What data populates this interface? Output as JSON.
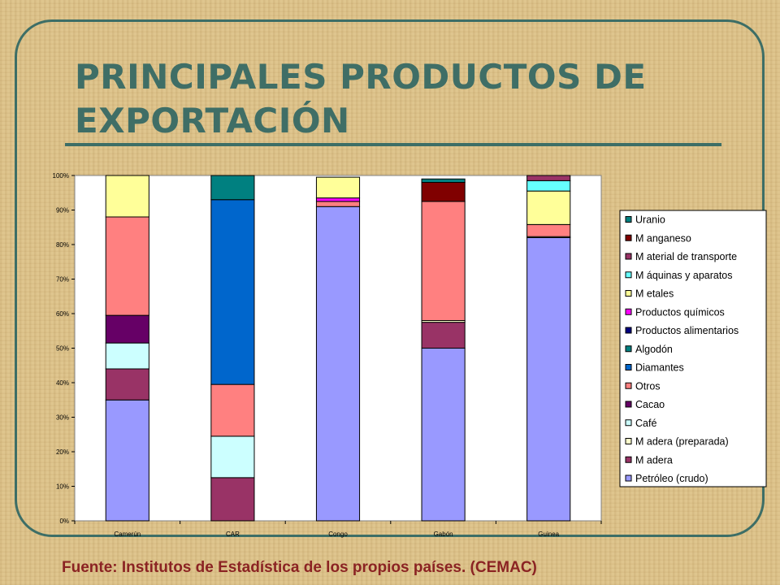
{
  "slide": {
    "title_line1": "PRINCIPALES PRODUCTOS DE",
    "title_line2": "EXPORTACIÓN",
    "source": "Fuente: Institutos de Estadística de los propios países. (CEMAC)"
  },
  "colors": {
    "frame": "#3d6e66",
    "title": "#3f6e66",
    "source": "#8b2323",
    "background": "#dcc188"
  },
  "chart_data": {
    "type": "bar",
    "stacked": true,
    "percent": true,
    "categories": [
      "Camerún",
      "CAR",
      "Congo",
      "Gabón",
      "Guinea"
    ],
    "y_ticks": [
      "0%",
      "10%",
      "20%",
      "30%",
      "40%",
      "50%",
      "60%",
      "70%",
      "80%",
      "90%",
      "100%"
    ],
    "ylim": [
      0,
      100
    ],
    "grid": false,
    "legend_position": "right",
    "series": [
      {
        "name": "Petróleo (crudo)",
        "color": "#9999ff",
        "values": [
          35,
          0,
          91,
          50,
          82
        ]
      },
      {
        "name": "M adera",
        "color": "#993366",
        "values": [
          9,
          12.5,
          0,
          7.5,
          0
        ]
      },
      {
        "name": "M adera (preparada)",
        "color": "#ffffcc",
        "values": [
          0,
          0,
          0,
          0.5,
          0.3
        ]
      },
      {
        "name": "Café",
        "color": "#ccffff",
        "values": [
          7.5,
          12,
          0,
          0,
          0
        ]
      },
      {
        "name": "Cacao",
        "color": "#660066",
        "values": [
          8,
          0,
          0,
          0,
          0
        ]
      },
      {
        "name": "Otros",
        "color": "#ff8080",
        "values": [
          28.5,
          15,
          1.5,
          34.5,
          3.5
        ]
      },
      {
        "name": "Diamantes",
        "color": "#0066cc",
        "values": [
          0,
          53.5,
          0,
          0,
          0
        ]
      },
      {
        "name": "Algodón",
        "color": "#008080",
        "values": [
          0,
          7,
          0,
          0,
          0
        ]
      },
      {
        "name": "Productos alimentarios",
        "color": "#000080",
        "values": [
          0,
          0,
          0,
          0,
          0
        ]
      },
      {
        "name": "Productos químicos",
        "color": "#ff00ff",
        "values": [
          0,
          0,
          1,
          0,
          0
        ]
      },
      {
        "name": "M etales",
        "color": "#ffff99",
        "values": [
          12,
          0,
          6,
          0,
          9.7
        ]
      },
      {
        "name": "M áquinas y aparatos",
        "color": "#66ffff",
        "values": [
          0,
          0,
          0,
          0,
          3
        ]
      },
      {
        "name": "M aterial de transporte",
        "color": "#993366",
        "values": [
          0,
          0,
          0,
          0,
          1.5
        ]
      },
      {
        "name": "M anganeso",
        "color": "#800000",
        "values": [
          0,
          0,
          0,
          5.5,
          0
        ]
      },
      {
        "name": "Uranio",
        "color": "#008080",
        "values": [
          0,
          0,
          0,
          1,
          0
        ]
      }
    ]
  }
}
